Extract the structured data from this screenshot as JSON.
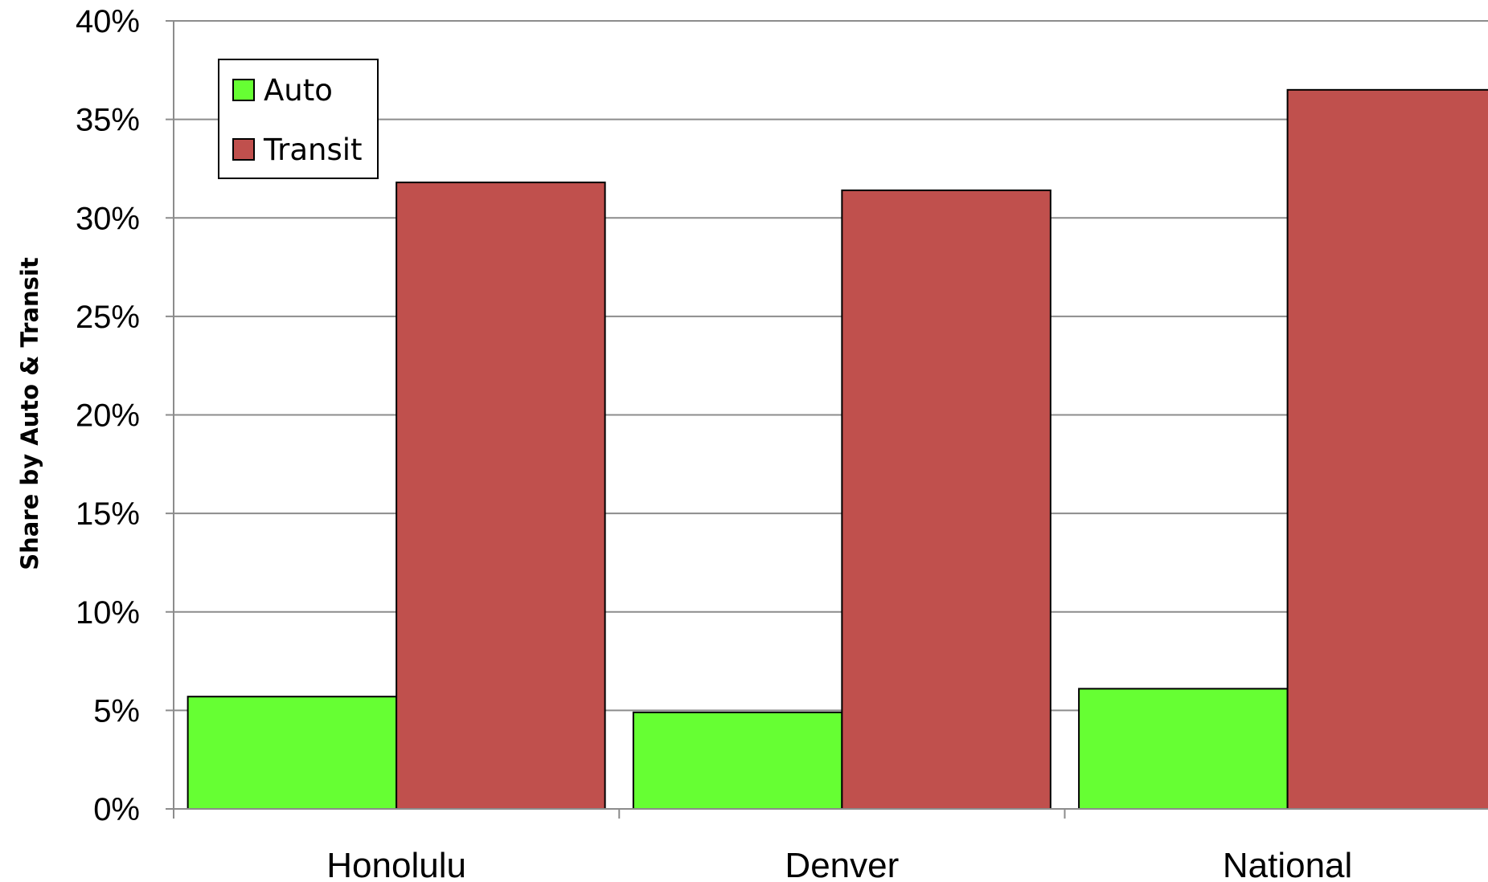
{
  "chart_data": {
    "type": "bar",
    "title": "",
    "xlabel": "",
    "ylabel": "Share by Auto & Transit",
    "categories": [
      "Honolulu",
      "Denver",
      "National"
    ],
    "series": [
      {
        "name": "Auto",
        "color": "#66ff33",
        "values": [
          5.7,
          4.9,
          6.1
        ]
      },
      {
        "name": "Transit",
        "color": "#c0504d",
        "values": [
          31.8,
          31.4,
          36.5
        ]
      }
    ],
    "ylim": [
      0,
      40
    ],
    "yticks": [
      0,
      5,
      10,
      15,
      20,
      25,
      30,
      35,
      40
    ],
    "ytick_labels": [
      "0%",
      "5%",
      "10%",
      "15%",
      "20%",
      "25%",
      "30%",
      "35%",
      "40%"
    ],
    "grid": true,
    "legend_position": "top-left"
  }
}
